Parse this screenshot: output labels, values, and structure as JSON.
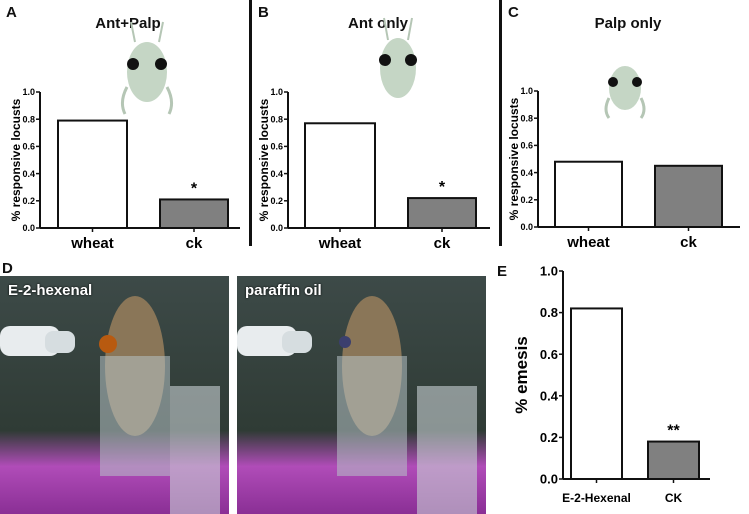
{
  "panels": {
    "a": {
      "label": "A",
      "title": "Ant+Palp"
    },
    "b": {
      "label": "B",
      "title": "Ant only"
    },
    "c": {
      "label": "C",
      "title": "Palp only"
    },
    "d": {
      "label": "D",
      "photos": [
        "E-2-hexenal",
        "paraffin oil"
      ]
    },
    "e": {
      "label": "E"
    }
  },
  "colors": {
    "control_bar": "#ffffff",
    "ck_bar": "#808080",
    "axis": "#111111"
  },
  "chart_data": [
    {
      "type": "bar",
      "panel": "A",
      "title": "Ant+Palp",
      "categories": [
        "wheat",
        "ck"
      ],
      "values": [
        0.79,
        0.21
      ],
      "ylabel": "% responsive locusts",
      "xlabel": "",
      "ylim": [
        0,
        1.0
      ],
      "yticks": [
        "0.0",
        "0.2",
        "0.4",
        "0.6",
        "0.8",
        "1.0"
      ],
      "annotations": [
        "",
        "*"
      ],
      "grid": false
    },
    {
      "type": "bar",
      "panel": "B",
      "title": "Ant only",
      "categories": [
        "wheat",
        "ck"
      ],
      "values": [
        0.77,
        0.22
      ],
      "ylabel": "% responsive locusts",
      "xlabel": "",
      "ylim": [
        0,
        1.0
      ],
      "yticks": [
        "0.0",
        "0.2",
        "0.4",
        "0.6",
        "0.8",
        "1.0"
      ],
      "annotations": [
        "",
        "*"
      ],
      "grid": false
    },
    {
      "type": "bar",
      "panel": "C",
      "title": "Palp only",
      "categories": [
        "wheat",
        "ck"
      ],
      "values": [
        0.48,
        0.45
      ],
      "ylabel": "% responsive locusts",
      "xlabel": "",
      "ylim": [
        0,
        1.0
      ],
      "yticks": [
        "0.0",
        "0.2",
        "0.4",
        "0.6",
        "0.8",
        "1.0"
      ],
      "annotations": [
        "",
        ""
      ],
      "grid": false
    },
    {
      "type": "bar",
      "panel": "E",
      "title": "",
      "categories": [
        "E-2-Hexenal",
        "CK"
      ],
      "values": [
        0.82,
        0.18
      ],
      "ylabel": "% emesis",
      "xlabel": "",
      "ylim": [
        0,
        1.0
      ],
      "yticks": [
        "0.0",
        "0.2",
        "0.4",
        "0.6",
        "0.8",
        "1.0"
      ],
      "annotations": [
        "",
        "**"
      ],
      "grid": false
    }
  ]
}
